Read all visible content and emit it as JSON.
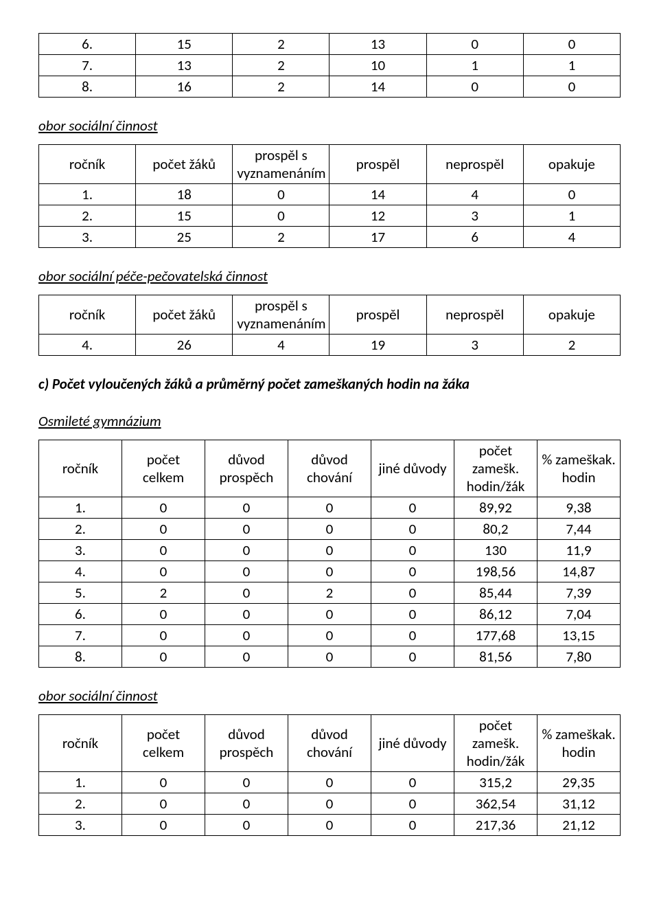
{
  "table1": {
    "rows": [
      [
        "6.",
        "15",
        "2",
        "13",
        "0",
        "0"
      ],
      [
        "7.",
        "13",
        "2",
        "10",
        "1",
        "1"
      ],
      [
        "8.",
        "16",
        "2",
        "14",
        "0",
        "0"
      ]
    ]
  },
  "label_soc_cinnost": "obor sociální činnost",
  "table2": {
    "headers": [
      "ročník",
      "počet žáků",
      "prospěl s vyznamenáním",
      "prospěl",
      "neprospěl",
      "opakuje"
    ],
    "rows": [
      [
        "1.",
        "18",
        "0",
        "14",
        "4",
        "0"
      ],
      [
        "2.",
        "15",
        "0",
        "12",
        "3",
        "1"
      ],
      [
        "3.",
        "25",
        "2",
        "17",
        "6",
        "4"
      ]
    ]
  },
  "label_pece": "obor sociální péče-pečovatelská činnost",
  "table3": {
    "headers": [
      "ročník",
      "počet žáků",
      "prospěl s vyznamenáním",
      "prospěl",
      "neprospěl",
      "opakuje"
    ],
    "rows": [
      [
        "4.",
        "26",
        "4",
        "19",
        "3",
        "2"
      ]
    ]
  },
  "section_c": "c) Počet vyloučených žáků a průměrný počet zameškaných hodin na žáka",
  "label_osmilete": "Osmileté gymnázium",
  "table4": {
    "headers": [
      "ročník",
      "počet celkem",
      "důvod prospěch",
      "důvod chování",
      "jiné důvody",
      "počet zamešk. hodin/žák",
      "% zameškak. hodin"
    ],
    "rows": [
      [
        "1.",
        "0",
        "0",
        "0",
        "0",
        "89,92",
        "9,38"
      ],
      [
        "2.",
        "0",
        "0",
        "0",
        "0",
        "80,2",
        "7,44"
      ],
      [
        "3.",
        "0",
        "0",
        "0",
        "0",
        "130",
        "11,9"
      ],
      [
        "4.",
        "0",
        "0",
        "0",
        "0",
        "198,56",
        "14,87"
      ],
      [
        "5.",
        "2",
        "0",
        "2",
        "0",
        "85,44",
        "7,39"
      ],
      [
        "6.",
        "0",
        "0",
        "0",
        "0",
        "86,12",
        "7,04"
      ],
      [
        "7.",
        "0",
        "0",
        "0",
        "0",
        "177,68",
        "13,15"
      ],
      [
        "8.",
        "0",
        "0",
        "0",
        "0",
        "81,56",
        "7,80"
      ]
    ]
  },
  "label_soc_cinnost2": "obor sociální činnost",
  "table5": {
    "headers": [
      "ročník",
      "počet celkem",
      "důvod prospěch",
      "důvod chování",
      "jiné důvody",
      "počet zamešk. hodin/žák",
      "% zameškak. hodin"
    ],
    "rows": [
      [
        "1.",
        "0",
        "0",
        "0",
        "0",
        "315,2",
        "29,35"
      ],
      [
        "2.",
        "0",
        "0",
        "0",
        "0",
        "362,54",
        "31,12"
      ],
      [
        "3.",
        "0",
        "0",
        "0",
        "0",
        "217,36",
        "21,12"
      ]
    ]
  }
}
